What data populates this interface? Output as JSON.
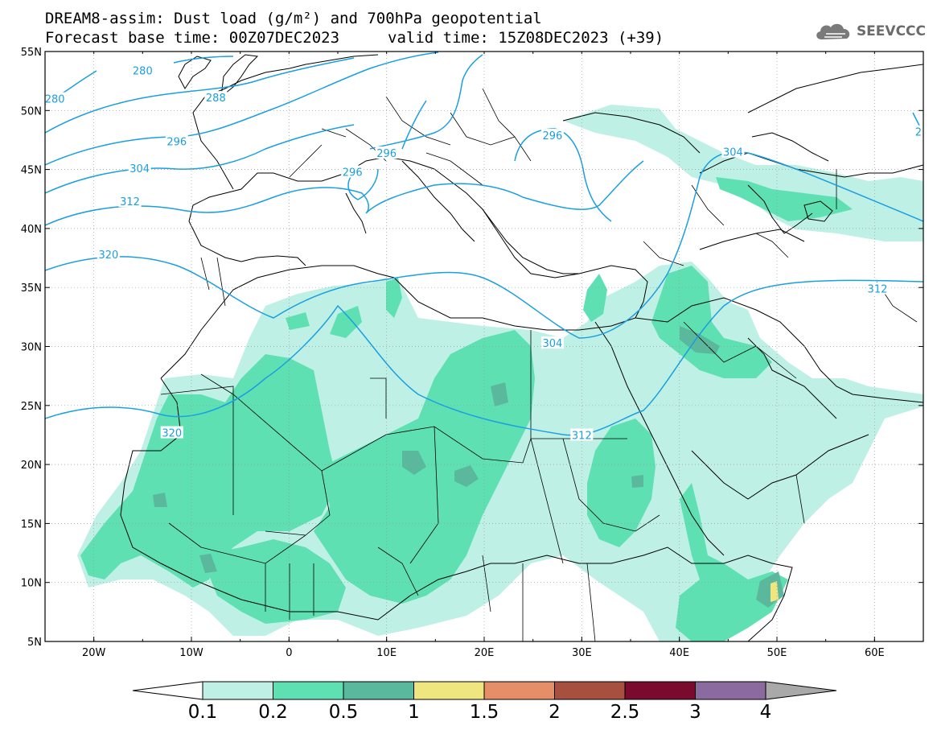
{
  "header": {
    "title_line1": "DREAM8-assim: Dust load (g/m²) and 700hPa geopotential",
    "base_time": "Forecast base time: 00Z07DEC2023",
    "valid_time": "valid time: 15Z08DEC2023 (+39)",
    "logo_text": "SEEVCCC",
    "logo_icon": "cloud-icon"
  },
  "map": {
    "lon_range": [
      -25,
      65
    ],
    "lat_range": [
      5,
      55
    ],
    "lon_ticks": [
      {
        "value": -20,
        "label": "20W"
      },
      {
        "value": -10,
        "label": "10W"
      },
      {
        "value": 0,
        "label": "0"
      },
      {
        "value": 10,
        "label": "10E"
      },
      {
        "value": 20,
        "label": "20E"
      },
      {
        "value": 30,
        "label": "30E"
      },
      {
        "value": 40,
        "label": "40E"
      },
      {
        "value": 50,
        "label": "50E"
      },
      {
        "value": 60,
        "label": "60E"
      }
    ],
    "lat_ticks": [
      {
        "value": 5,
        "label": "5N"
      },
      {
        "value": 10,
        "label": "10N"
      },
      {
        "value": 15,
        "label": "15N"
      },
      {
        "value": 20,
        "label": "20N"
      },
      {
        "value": 25,
        "label": "25N"
      },
      {
        "value": 30,
        "label": "30N"
      },
      {
        "value": 35,
        "label": "35N"
      },
      {
        "value": 40,
        "label": "40N"
      },
      {
        "value": 45,
        "label": "45N"
      },
      {
        "value": 50,
        "label": "50N"
      },
      {
        "value": 55,
        "label": "55N"
      }
    ],
    "contour_color": "#1a9fe0",
    "contour_labels": [
      {
        "text": "280",
        "lon": -15,
        "lat": 53.4
      },
      {
        "text": "280",
        "lon": -24,
        "lat": 51
      },
      {
        "text": "288",
        "lon": -7.5,
        "lat": 51.1
      },
      {
        "text": "296",
        "lon": -11.5,
        "lat": 47.4
      },
      {
        "text": "296",
        "lon": 10,
        "lat": 46.4
      },
      {
        "text": "296",
        "lon": 6.5,
        "lat": 44.8
      },
      {
        "text": "296",
        "lon": 27,
        "lat": 47.9
      },
      {
        "text": "2",
        "lon": 64.5,
        "lat": 48.2
      },
      {
        "text": "304",
        "lon": -15.3,
        "lat": 45.1
      },
      {
        "text": "304",
        "lon": 45.5,
        "lat": 46.5
      },
      {
        "text": "304",
        "lon": 27,
        "lat": 30.3
      },
      {
        "text": "312",
        "lon": -16.3,
        "lat": 42.3
      },
      {
        "text": "312",
        "lon": 60.3,
        "lat": 34.9
      },
      {
        "text": "312",
        "lon": 30,
        "lat": 22.5
      },
      {
        "text": "320",
        "lon": -18.5,
        "lat": 37.8
      },
      {
        "text": "320",
        "lon": -12,
        "lat": 22.7
      }
    ]
  },
  "legend": {
    "classes": [
      {
        "color": "#bff0e5"
      },
      {
        "color": "#5ee0b3"
      },
      {
        "color": "#5ab99d"
      },
      {
        "color": "#f0e680"
      },
      {
        "color": "#e68e68"
      },
      {
        "color": "#a8503f"
      },
      {
        "color": "#7a0a2e"
      },
      {
        "color": "#8b6aa0"
      }
    ],
    "labels": [
      "0.1",
      "0.2",
      "0.5",
      "1",
      "1.5",
      "2",
      "2.5",
      "3",
      "4"
    ]
  }
}
